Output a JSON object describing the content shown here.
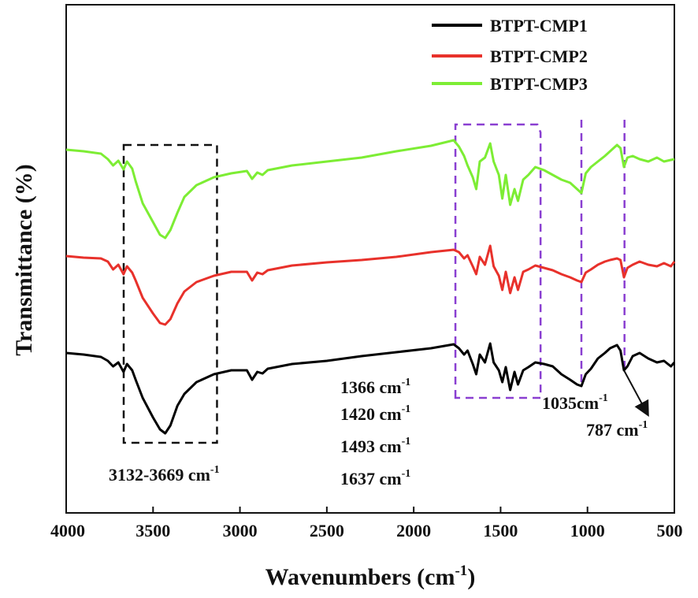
{
  "chart_data": {
    "type": "line",
    "title": "",
    "xlabel": "Wavenumbers (cm",
    "xlabel_sup": "-1",
    "xlabel_tail": ")",
    "ylabel": "Transmittance (%)",
    "xlim": [
      4000,
      500
    ],
    "x_reversed": true,
    "y_axis_ticks": false,
    "grid": false,
    "legend_position": "top-right",
    "x_ticks": [
      "4000",
      "3500",
      "3000",
      "2500",
      "2000",
      "1500",
      "1000",
      "500"
    ],
    "x_tick_values": [
      4000,
      3500,
      3000,
      2500,
      2000,
      1500,
      1000,
      500
    ],
    "series": [
      {
        "name": "BTPT-CMP1",
        "color": "#000000",
        "points": [
          [
            4000,
            448
          ],
          [
            3900,
            450
          ],
          [
            3800,
            453
          ],
          [
            3760,
            458
          ],
          [
            3730,
            465
          ],
          [
            3700,
            460
          ],
          [
            3670,
            472
          ],
          [
            3650,
            462
          ],
          [
            3620,
            470
          ],
          [
            3600,
            482
          ],
          [
            3560,
            505
          ],
          [
            3500,
            530
          ],
          [
            3460,
            545
          ],
          [
            3430,
            550
          ],
          [
            3400,
            540
          ],
          [
            3360,
            515
          ],
          [
            3320,
            500
          ],
          [
            3250,
            485
          ],
          [
            3150,
            475
          ],
          [
            3050,
            470
          ],
          [
            2960,
            470
          ],
          [
            2930,
            482
          ],
          [
            2900,
            472
          ],
          [
            2870,
            474
          ],
          [
            2840,
            468
          ],
          [
            2700,
            462
          ],
          [
            2500,
            458
          ],
          [
            2300,
            452
          ],
          [
            2100,
            447
          ],
          [
            1900,
            442
          ],
          [
            1770,
            437
          ],
          [
            1740,
            442
          ],
          [
            1710,
            450
          ],
          [
            1690,
            445
          ],
          [
            1660,
            462
          ],
          [
            1640,
            475
          ],
          [
            1620,
            450
          ],
          [
            1590,
            460
          ],
          [
            1560,
            436
          ],
          [
            1540,
            460
          ],
          [
            1510,
            470
          ],
          [
            1490,
            485
          ],
          [
            1470,
            466
          ],
          [
            1445,
            495
          ],
          [
            1420,
            472
          ],
          [
            1400,
            488
          ],
          [
            1370,
            470
          ],
          [
            1340,
            466
          ],
          [
            1300,
            460
          ],
          [
            1250,
            462
          ],
          [
            1200,
            465
          ],
          [
            1150,
            475
          ],
          [
            1100,
            482
          ],
          [
            1060,
            488
          ],
          [
            1035,
            490
          ],
          [
            1010,
            475
          ],
          [
            980,
            468
          ],
          [
            940,
            455
          ],
          [
            900,
            448
          ],
          [
            870,
            442
          ],
          [
            830,
            438
          ],
          [
            810,
            445
          ],
          [
            790,
            470
          ],
          [
            770,
            465
          ],
          [
            740,
            452
          ],
          [
            700,
            448
          ],
          [
            650,
            455
          ],
          [
            600,
            460
          ],
          [
            560,
            458
          ],
          [
            520,
            465
          ],
          [
            500,
            460
          ]
        ]
      },
      {
        "name": "BTPT-CMP2",
        "color": "#e8312b",
        "points": [
          [
            4000,
            325
          ],
          [
            3900,
            327
          ],
          [
            3800,
            328
          ],
          [
            3760,
            332
          ],
          [
            3730,
            342
          ],
          [
            3700,
            336
          ],
          [
            3670,
            348
          ],
          [
            3650,
            338
          ],
          [
            3620,
            346
          ],
          [
            3600,
            356
          ],
          [
            3560,
            378
          ],
          [
            3500,
            398
          ],
          [
            3460,
            410
          ],
          [
            3430,
            412
          ],
          [
            3400,
            405
          ],
          [
            3360,
            385
          ],
          [
            3320,
            370
          ],
          [
            3250,
            358
          ],
          [
            3150,
            350
          ],
          [
            3050,
            345
          ],
          [
            2960,
            345
          ],
          [
            2930,
            356
          ],
          [
            2900,
            346
          ],
          [
            2870,
            348
          ],
          [
            2840,
            343
          ],
          [
            2700,
            337
          ],
          [
            2500,
            333
          ],
          [
            2300,
            330
          ],
          [
            2100,
            326
          ],
          [
            1900,
            320
          ],
          [
            1770,
            317
          ],
          [
            1740,
            320
          ],
          [
            1710,
            328
          ],
          [
            1690,
            324
          ],
          [
            1660,
            338
          ],
          [
            1640,
            348
          ],
          [
            1620,
            326
          ],
          [
            1590,
            336
          ],
          [
            1560,
            312
          ],
          [
            1540,
            338
          ],
          [
            1510,
            350
          ],
          [
            1490,
            368
          ],
          [
            1470,
            345
          ],
          [
            1445,
            372
          ],
          [
            1420,
            352
          ],
          [
            1400,
            368
          ],
          [
            1370,
            345
          ],
          [
            1340,
            342
          ],
          [
            1300,
            337
          ],
          [
            1250,
            340
          ],
          [
            1200,
            343
          ],
          [
            1150,
            348
          ],
          [
            1100,
            352
          ],
          [
            1060,
            356
          ],
          [
            1035,
            358
          ],
          [
            1010,
            346
          ],
          [
            980,
            342
          ],
          [
            940,
            336
          ],
          [
            900,
            332
          ],
          [
            870,
            330
          ],
          [
            830,
            328
          ],
          [
            810,
            330
          ],
          [
            790,
            352
          ],
          [
            770,
            340
          ],
          [
            740,
            336
          ],
          [
            700,
            332
          ],
          [
            650,
            336
          ],
          [
            600,
            338
          ],
          [
            560,
            334
          ],
          [
            520,
            338
          ],
          [
            500,
            332
          ]
        ]
      },
      {
        "name": "BTPT-CMP3",
        "color": "#7ded34",
        "points": [
          [
            4000,
            190
          ],
          [
            3900,
            192
          ],
          [
            3800,
            195
          ],
          [
            3760,
            202
          ],
          [
            3730,
            210
          ],
          [
            3700,
            204
          ],
          [
            3670,
            215
          ],
          [
            3650,
            205
          ],
          [
            3620,
            214
          ],
          [
            3600,
            230
          ],
          [
            3560,
            258
          ],
          [
            3500,
            282
          ],
          [
            3460,
            298
          ],
          [
            3430,
            302
          ],
          [
            3400,
            292
          ],
          [
            3360,
            270
          ],
          [
            3320,
            250
          ],
          [
            3250,
            235
          ],
          [
            3150,
            225
          ],
          [
            3050,
            220
          ],
          [
            2960,
            217
          ],
          [
            2930,
            227
          ],
          [
            2900,
            219
          ],
          [
            2870,
            222
          ],
          [
            2840,
            216
          ],
          [
            2700,
            210
          ],
          [
            2500,
            205
          ],
          [
            2300,
            200
          ],
          [
            2100,
            192
          ],
          [
            1900,
            185
          ],
          [
            1770,
            178
          ],
          [
            1740,
            186
          ],
          [
            1710,
            198
          ],
          [
            1690,
            210
          ],
          [
            1660,
            225
          ],
          [
            1640,
            240
          ],
          [
            1620,
            205
          ],
          [
            1590,
            200
          ],
          [
            1560,
            182
          ],
          [
            1540,
            205
          ],
          [
            1510,
            222
          ],
          [
            1490,
            252
          ],
          [
            1470,
            222
          ],
          [
            1445,
            260
          ],
          [
            1420,
            240
          ],
          [
            1400,
            255
          ],
          [
            1370,
            228
          ],
          [
            1340,
            222
          ],
          [
            1300,
            212
          ],
          [
            1250,
            216
          ],
          [
            1200,
            222
          ],
          [
            1150,
            228
          ],
          [
            1100,
            232
          ],
          [
            1060,
            240
          ],
          [
            1035,
            245
          ],
          [
            1010,
            220
          ],
          [
            980,
            212
          ],
          [
            940,
            205
          ],
          [
            900,
            198
          ],
          [
            870,
            192
          ],
          [
            830,
            184
          ],
          [
            810,
            188
          ],
          [
            790,
            212
          ],
          [
            770,
            200
          ],
          [
            740,
            198
          ],
          [
            700,
            202
          ],
          [
            650,
            205
          ],
          [
            600,
            200
          ],
          [
            560,
            205
          ],
          [
            520,
            203
          ],
          [
            500,
            202
          ]
        ]
      }
    ],
    "annotations": {
      "oh_range": {
        "text": "3132-3669 cm",
        "sup": "-1"
      },
      "peak_1366": {
        "text": "1366 cm",
        "sup": "-1"
      },
      "peak_1420": {
        "text": "1420 cm",
        "sup": "-1"
      },
      "peak_1493": {
        "text": "1493 cm",
        "sup": "-1"
      },
      "peak_1637": {
        "text": "1637 cm",
        "sup": "-1"
      },
      "peak_1035": {
        "text": "1035cm",
        "sup": "-1"
      },
      "peak_787": {
        "text": "787 cm",
        "sup": "-1"
      }
    },
    "boxes": [
      {
        "name": "oh-range-box",
        "x_from": 3669,
        "x_to": 3132,
        "color": "#111111"
      },
      {
        "name": "aromatic-region-box",
        "x_from": 1760,
        "x_to": 1270,
        "color": "#8a3fd1"
      },
      {
        "name": "peak-1035-lines",
        "x_from": 1035,
        "x_to": 787,
        "color": "#8a3fd1"
      }
    ]
  }
}
